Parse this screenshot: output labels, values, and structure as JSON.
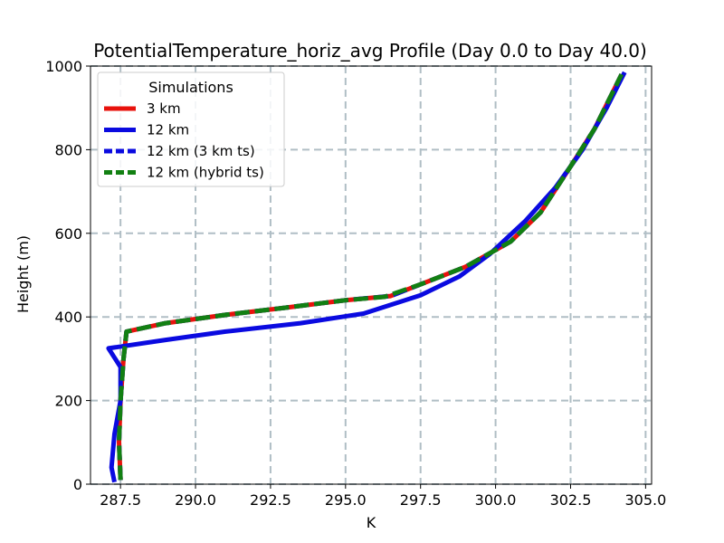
{
  "chart_data": {
    "type": "line",
    "title": "PotentialTemperature_horiz_avg Profile (Day 0.0 to Day 40.0)",
    "xlabel": "K",
    "ylabel": "Height (m)",
    "xlim": [
      286.5,
      305.2
    ],
    "ylim": [
      0,
      1000
    ],
    "xticks": [
      287.5,
      290.0,
      292.5,
      295.0,
      297.5,
      300.0,
      302.5,
      305.0
    ],
    "xtick_labels": [
      "287.5",
      "290.0",
      "292.5",
      "295.0",
      "297.5",
      "300.0",
      "302.5",
      "305.0"
    ],
    "yticks": [
      0,
      200,
      400,
      600,
      800,
      1000
    ],
    "ytick_labels": [
      "0",
      "200",
      "400",
      "600",
      "800",
      "1000"
    ],
    "grid": true,
    "legend": {
      "title": "Simulations",
      "position": "top-left"
    },
    "series": [
      {
        "name": "3 km",
        "color": "#e8120c",
        "style": "solid",
        "points": [
          [
            287.5,
            10
          ],
          [
            287.45,
            100
          ],
          [
            287.5,
            200
          ],
          [
            287.6,
            300
          ],
          [
            287.7,
            365
          ],
          [
            289,
            385
          ],
          [
            291,
            405
          ],
          [
            293,
            422
          ],
          [
            295,
            440
          ],
          [
            296.5,
            450
          ],
          [
            297.5,
            478
          ],
          [
            299,
            520
          ],
          [
            300.5,
            580
          ],
          [
            301.5,
            650
          ],
          [
            302.5,
            760
          ],
          [
            303.3,
            850
          ],
          [
            304.2,
            980
          ]
        ]
      },
      {
        "name": "12 km",
        "color": "#0a0ae0",
        "style": "solid",
        "points": [
          [
            287.3,
            5
          ],
          [
            287.2,
            40
          ],
          [
            287.3,
            120
          ],
          [
            287.5,
            200
          ],
          [
            287.5,
            280
          ],
          [
            287.1,
            325
          ],
          [
            289,
            345
          ],
          [
            291,
            365
          ],
          [
            293.5,
            385
          ],
          [
            295.6,
            408
          ],
          [
            297.5,
            452
          ],
          [
            298.8,
            497
          ],
          [
            299.8,
            550
          ],
          [
            301,
            630
          ],
          [
            302,
            710
          ],
          [
            302.9,
            800
          ],
          [
            303.7,
            900
          ],
          [
            304.3,
            985
          ]
        ]
      },
      {
        "name": "12 km (3 km ts)",
        "color": "#0a0ae0",
        "style": "dash",
        "points": [
          [
            287.5,
            10
          ],
          [
            287.45,
            100
          ],
          [
            287.5,
            200
          ],
          [
            287.6,
            300
          ],
          [
            287.7,
            365
          ],
          [
            289,
            385
          ],
          [
            291,
            405
          ],
          [
            293,
            422
          ],
          [
            295,
            440
          ],
          [
            296.5,
            450
          ],
          [
            297.5,
            478
          ],
          [
            299,
            520
          ],
          [
            300.5,
            580
          ],
          [
            301.5,
            650
          ],
          [
            302.5,
            760
          ],
          [
            303.3,
            850
          ],
          [
            304.2,
            980
          ]
        ]
      },
      {
        "name": "12 km (hybrid ts)",
        "color": "#128012",
        "style": "dash",
        "points": [
          [
            287.5,
            10
          ],
          [
            287.45,
            100
          ],
          [
            287.5,
            200
          ],
          [
            287.6,
            300
          ],
          [
            287.7,
            365
          ],
          [
            289,
            385
          ],
          [
            291,
            405
          ],
          [
            293,
            422
          ],
          [
            295,
            440
          ],
          [
            296.3,
            448
          ],
          [
            297.5,
            478
          ],
          [
            299,
            520
          ],
          [
            300.5,
            580
          ],
          [
            301.5,
            650
          ],
          [
            302.5,
            760
          ],
          [
            303.3,
            850
          ],
          [
            304.2,
            980
          ]
        ]
      }
    ]
  }
}
